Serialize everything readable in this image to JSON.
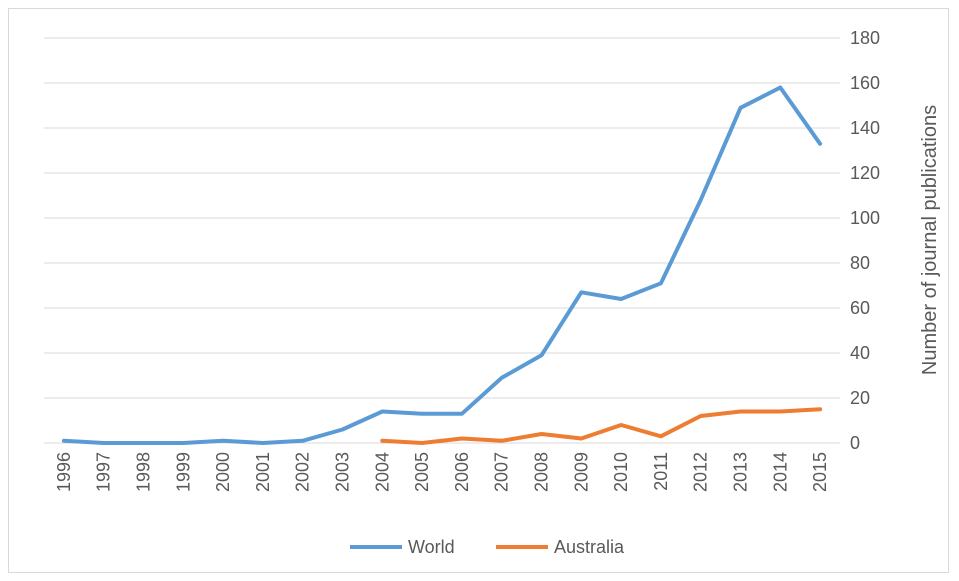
{
  "chart_data": {
    "type": "line",
    "x": [
      "1996",
      "1997",
      "1998",
      "1999",
      "2000",
      "2001",
      "2002",
      "2003",
      "2004",
      "2005",
      "2006",
      "2007",
      "2008",
      "2009",
      "2010",
      "2011",
      "2012",
      "2013",
      "2014",
      "2015"
    ],
    "series": [
      {
        "name": "World",
        "color": "#5b9bd5",
        "values": [
          1,
          0,
          0,
          0,
          1,
          0,
          1,
          6,
          14,
          13,
          13,
          29,
          39,
          67,
          64,
          71,
          108,
          149,
          158,
          133
        ]
      },
      {
        "name": "Australia",
        "color": "#ed7d31",
        "values": [
          null,
          null,
          null,
          null,
          null,
          null,
          null,
          null,
          1,
          0,
          2,
          1,
          4,
          2,
          8,
          3,
          12,
          14,
          14,
          15
        ]
      }
    ],
    "title": "",
    "xlabel": "",
    "ylabel": "Number of journal publications",
    "ylim": [
      0,
      180
    ],
    "yticks": [
      "0",
      "20",
      "40",
      "60",
      "80",
      "100",
      "120",
      "140",
      "160",
      "180"
    ],
    "y_axis_side": "right",
    "grid": true,
    "legend_position": "bottom"
  }
}
